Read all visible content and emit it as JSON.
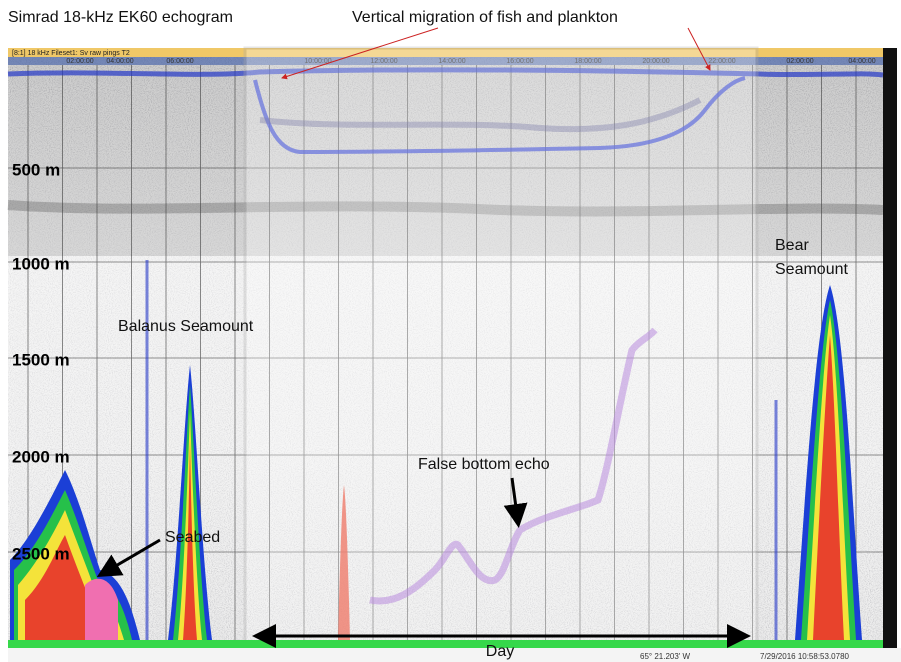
{
  "title": "Simrad 18-kHz EK60 echogram",
  "migration_label": "Vertical migration of fish and plankton",
  "header_bar": "[8:1] 18 kHz Fileset1: Sv raw pings T2",
  "times": [
    "02:00:00",
    "04:00:00",
    "06:00:00",
    "10:00:00",
    "12:00:00",
    "14:00:00",
    "16:00:00",
    "18:00:00",
    "20:00:00",
    "22:00:00",
    "02:00:00",
    "04:00:00"
  ],
  "depth_labels": [
    "500 m",
    "1000 m",
    "1500 m",
    "2000 m",
    "2500 m"
  ],
  "annotations": {
    "balanus": "Balanus Seamount",
    "bear": "Bear\nSeamount",
    "seabed": "Seabed",
    "false_bottom": "False bottom echo",
    "day": "Day"
  },
  "status": {
    "position": "65° 21.203' W",
    "timestamp": "7/29/2016 10:58:53.0780"
  }
}
